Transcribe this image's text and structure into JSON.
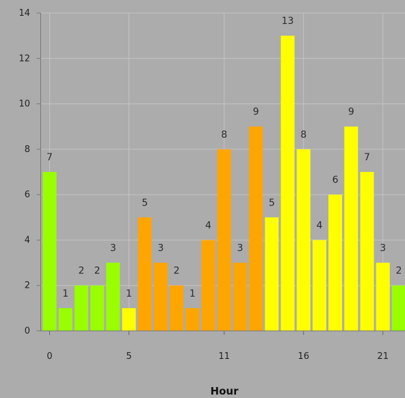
{
  "chart_data": {
    "type": "bar",
    "xlabel": "Hour",
    "ylabel": "",
    "ylim": [
      0,
      14
    ],
    "yticks": [
      0,
      2,
      4,
      6,
      8,
      10,
      12,
      14
    ],
    "xticks": [
      0,
      5,
      11,
      16,
      21
    ],
    "grid": true,
    "categories": [
      0,
      1,
      2,
      3,
      4,
      5,
      6,
      7,
      8,
      9,
      10,
      11,
      12,
      13,
      14,
      15,
      16,
      17,
      18,
      19,
      20,
      21,
      22
    ],
    "values": [
      7,
      1,
      2,
      2,
      3,
      1,
      5,
      3,
      2,
      1,
      4,
      8,
      3,
      9,
      5,
      13,
      8,
      4,
      6,
      9,
      7,
      3,
      2
    ],
    "colors": [
      "#99ff00",
      "#99ff00",
      "#99ff00",
      "#99ff00",
      "#99ff00",
      "#ffff00",
      "#ffa500",
      "#ffa500",
      "#ffa500",
      "#ffa500",
      "#ffa500",
      "#ffa500",
      "#ffa500",
      "#ffa500",
      "#ffff00",
      "#ffff00",
      "#ffff00",
      "#ffff00",
      "#ffff00",
      "#ffff00",
      "#ffff00",
      "#ffff00",
      "#99ff00"
    ],
    "palette": {
      "green": "#99ff00",
      "orange": "#ffa500",
      "yellow": "#ffff00",
      "background": "#acacac",
      "grid": "#c4c4c4"
    }
  }
}
